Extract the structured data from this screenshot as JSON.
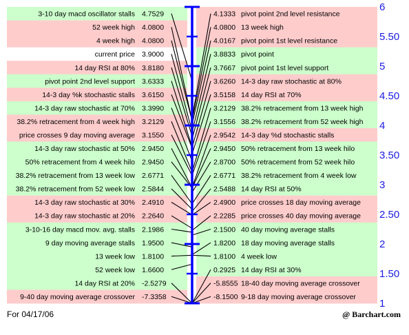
{
  "chart_data": {
    "type": "pivot-ladder",
    "axis": {
      "min": 1,
      "max": 6,
      "ticks": [
        "6",
        "5.50",
        "5",
        "4.50",
        "4",
        "3.50",
        "3",
        "2.50",
        "2",
        "1.50",
        "1"
      ]
    },
    "colors": {
      "green": "#ccffcc",
      "red": "#ffcccc",
      "white": "#ffffff",
      "axis": "#0000ff",
      "ticks": "#1a1ae0"
    },
    "left": [
      {
        "label": "3-10 day macd oscillator stalls",
        "value": "4.7529",
        "y": 4.7529,
        "color": "green"
      },
      {
        "label": "52 week high",
        "value": "4.0800",
        "y": 4.08,
        "color": "red"
      },
      {
        "label": "4 week high",
        "value": "4.0800",
        "y": 4.08,
        "color": "red"
      },
      {
        "label": "current price",
        "value": "3.9000",
        "y": 3.9,
        "color": "white"
      },
      {
        "label": "14 day RSI at 80%",
        "value": "3.8180",
        "y": 3.818,
        "color": "red"
      },
      {
        "label": "pivot point 2nd level support",
        "value": "3.6333",
        "y": 3.6333,
        "color": "green"
      },
      {
        "label": "14-3 day %k stochastic stalls",
        "value": "3.6150",
        "y": 3.615,
        "color": "red"
      },
      {
        "label": "14-3 day raw stochastic at 70%",
        "value": "3.3990",
        "y": 3.399,
        "color": "green"
      },
      {
        "label": "38.2% retracement from 4 week high",
        "value": "3.2129",
        "y": 3.2129,
        "color": "red"
      },
      {
        "label": "price crosses 9 day moving average",
        "value": "3.1550",
        "y": 3.155,
        "color": "red"
      },
      {
        "label": "14-3 day raw stochastic at 50%",
        "value": "2.9450",
        "y": 2.945,
        "color": "green"
      },
      {
        "label": "50% retracement from 4 week hilo",
        "value": "2.9450",
        "y": 2.945,
        "color": "green"
      },
      {
        "label": "38.2% retracement from 13 week low",
        "value": "2.6771",
        "y": 2.6771,
        "color": "green"
      },
      {
        "label": "38.2% retracement from 52 week low",
        "value": "2.5844",
        "y": 2.5844,
        "color": "green"
      },
      {
        "label": "14-3 day raw stochastic at 30%",
        "value": "2.4910",
        "y": 2.491,
        "color": "red"
      },
      {
        "label": "14-3 day raw stochastic at 20%",
        "value": "2.2640",
        "y": 2.264,
        "color": "red"
      },
      {
        "label": "3-10-16 day macd mov. avg. stalls",
        "value": "2.1986",
        "y": 2.1986,
        "color": "green"
      },
      {
        "label": "9 day moving average stalls",
        "value": "1.9500",
        "y": 1.95,
        "color": "green"
      },
      {
        "label": "13 week low",
        "value": "1.8100",
        "y": 1.81,
        "color": "green"
      },
      {
        "label": "52 week low",
        "value": "1.6600",
        "y": 1.66,
        "color": "green"
      },
      {
        "label": "14 day RSI at 20%",
        "value": "-2.5279",
        "y": -2.5279,
        "color": "green"
      },
      {
        "label": "9-40 day moving average crossover",
        "value": "-7.3358",
        "y": -7.3358,
        "color": "red"
      }
    ],
    "right": [
      {
        "label": "pivot point 2nd level resistance",
        "value": "4.1333",
        "y": 4.1333,
        "color": "red"
      },
      {
        "label": "13 week high",
        "value": "4.0800",
        "y": 4.08,
        "color": "red"
      },
      {
        "label": "pivot point 1st level resistance",
        "value": "4.0167",
        "y": 4.0167,
        "color": "red"
      },
      {
        "label": "pivot point",
        "value": "3.8833",
        "y": 3.8833,
        "color": "green"
      },
      {
        "label": "pivot point 1st level support",
        "value": "3.7667",
        "y": 3.7667,
        "color": "green"
      },
      {
        "label": "14-3 day raw stochastic at 80%",
        "value": "3.6260",
        "y": 3.626,
        "color": "red"
      },
      {
        "label": "14 day RSI at 70%",
        "value": "3.5158",
        "y": 3.5158,
        "color": "red"
      },
      {
        "label": "38.2% retracement from 13 week high",
        "value": "3.2129",
        "y": 3.2129,
        "color": "green"
      },
      {
        "label": "38.2% retracement from 52 week high",
        "value": "3.1556",
        "y": 3.1556,
        "color": "green"
      },
      {
        "label": "14-3 day %d stochastic stalls",
        "value": "2.9542",
        "y": 2.9542,
        "color": "red"
      },
      {
        "label": "50% retracement from 13 week hilo",
        "value": "2.9450",
        "y": 2.945,
        "color": "green"
      },
      {
        "label": "50% retracement from 52 week hilo",
        "value": "2.8700",
        "y": 2.87,
        "color": "green"
      },
      {
        "label": "38.2% retracement from 4 week low",
        "value": "2.6771",
        "y": 2.6771,
        "color": "green"
      },
      {
        "label": "14 day RSI at 50%",
        "value": "2.5488",
        "y": 2.5488,
        "color": "green"
      },
      {
        "label": "price crosses 18 day moving average",
        "value": "2.4900",
        "y": 2.49,
        "color": "red"
      },
      {
        "label": "price crosses 40 day moving average",
        "value": "2.2285",
        "y": 2.2285,
        "color": "red"
      },
      {
        "label": "40 day moving average stalls",
        "value": "2.1500",
        "y": 2.15,
        "color": "green"
      },
      {
        "label": "18 day moving average stalls",
        "value": "1.8200",
        "y": 1.82,
        "color": "green"
      },
      {
        "label": "4 week low",
        "value": "1.8100",
        "y": 1.81,
        "color": "green"
      },
      {
        "label": "14 day RSI at 30%",
        "value": "0.2925",
        "y": 0.2925,
        "color": "green"
      },
      {
        "label": "18-40 day moving average crossover",
        "value": "-5.8555",
        "y": -5.8555,
        "color": "red"
      },
      {
        "label": "9-18 day moving average crossover",
        "value": "-8.1500",
        "y": -8.15,
        "color": "red"
      }
    ]
  },
  "footer": {
    "date": "For 04/17/06",
    "source": "@ Barchart.com"
  }
}
